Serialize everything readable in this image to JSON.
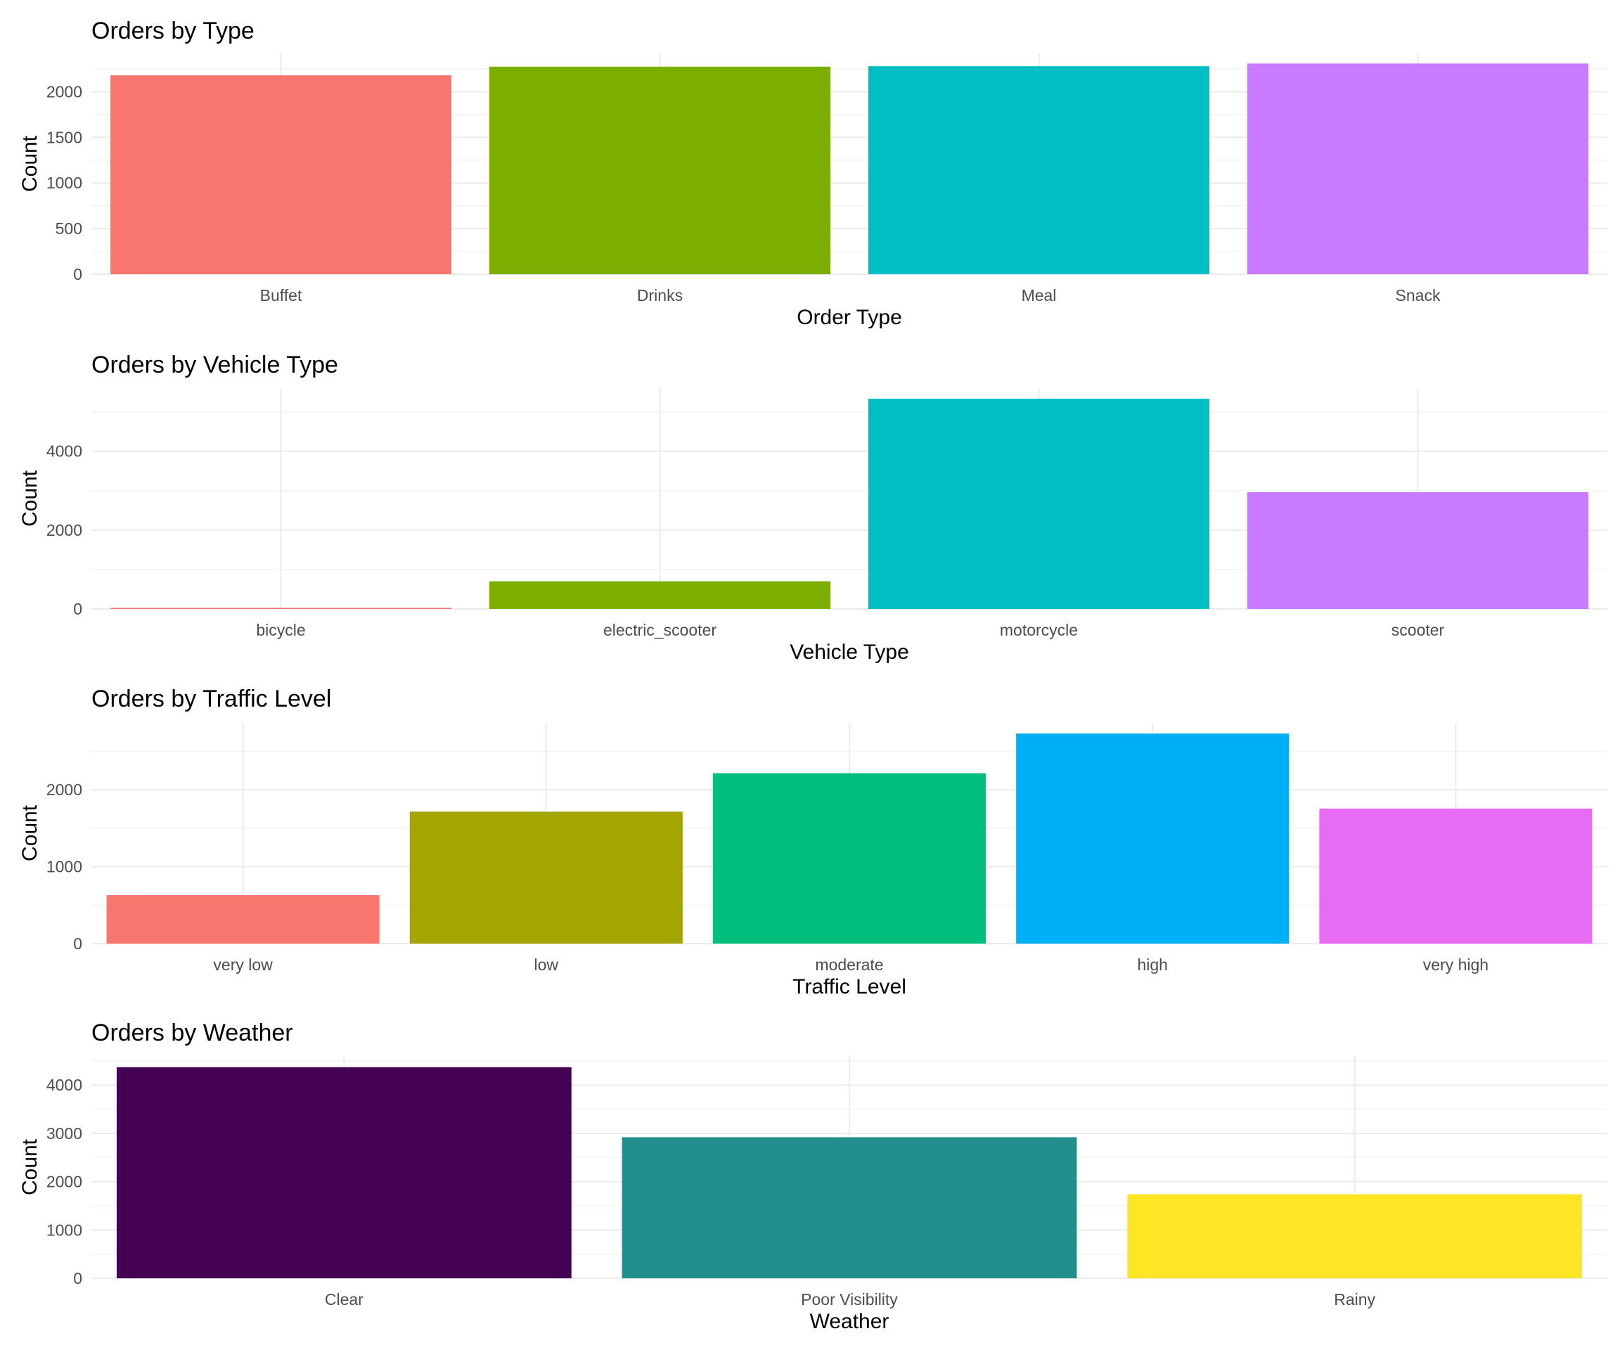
{
  "chart_data": [
    {
      "type": "bar",
      "title": "Orders by Type",
      "xlabel": "Order Type",
      "ylabel": "Count",
      "categories": [
        "Buffet",
        "Drinks",
        "Meal",
        "Snack"
      ],
      "values": [
        2180,
        2275,
        2280,
        2310
      ],
      "colors": [
        "#F8766D",
        "#7CAE00",
        "#00BFC4",
        "#C77CFF"
      ],
      "ylim": [
        0,
        2420
      ],
      "yticks": [
        0,
        500,
        1000,
        1500,
        2000
      ],
      "grid": true
    },
    {
      "type": "bar",
      "title": "Orders by Vehicle Type",
      "xlabel": "Vehicle Type",
      "ylabel": "Count",
      "categories": [
        "bicycle",
        "electric_scooter",
        "motorcycle",
        "scooter"
      ],
      "values": [
        5,
        700,
        5330,
        2960
      ],
      "colors": [
        "#F8766D",
        "#7CAE00",
        "#00BFC4",
        "#C77CFF"
      ],
      "ylim": [
        0,
        5600
      ],
      "yticks": [
        0,
        2000,
        4000
      ],
      "grid": true
    },
    {
      "type": "bar",
      "title": "Orders by Traffic Level",
      "xlabel": "Traffic Level",
      "ylabel": "Count",
      "categories": [
        "very low",
        "low",
        "moderate",
        "high",
        "very high"
      ],
      "values": [
        630,
        1715,
        2215,
        2730,
        1755
      ],
      "colors": [
        "#F8766D",
        "#A3A500",
        "#00BF7D",
        "#00B0F6",
        "#E76BF3"
      ],
      "ylim": [
        0,
        2870
      ],
      "yticks": [
        0,
        1000,
        2000
      ],
      "grid": true
    },
    {
      "type": "bar",
      "title": "Orders by Weather",
      "xlabel": "Weather",
      "ylabel": "Count",
      "categories": [
        "Clear",
        "Poor Visibility",
        "Rainy"
      ],
      "values": [
        4370,
        2920,
        1740
      ],
      "colors": [
        "#440154",
        "#21908C",
        "#FDE725"
      ],
      "ylim": [
        0,
        4600
      ],
      "yticks": [
        0,
        1000,
        2000,
        3000,
        4000
      ],
      "grid": true
    }
  ]
}
